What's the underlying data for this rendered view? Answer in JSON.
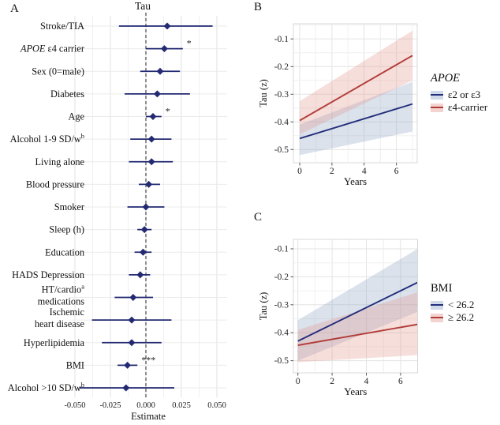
{
  "figure": {
    "outcome": "Tau",
    "background": "#ffffff",
    "navy": "#232e7c",
    "red": "#b23c38"
  },
  "chart_data": [
    {
      "panel_label": "A",
      "type": "scatter",
      "subtype": "forest_plot",
      "title": "Tau",
      "xlabel": "Estimate",
      "point_color": "#232a72",
      "reference_line": 0,
      "xlim": [
        -0.054,
        0.057
      ],
      "xticks": [
        -0.05,
        -0.025,
        0,
        0.025,
        0.05
      ],
      "xtick_labels": [
        "-0.050",
        "-0.025",
        "0.000",
        "0.025",
        "0.050"
      ],
      "rows": [
        {
          "name": "Stroke/TIA",
          "estimate": 0.015,
          "ci": [
            -0.019,
            0.047
          ],
          "sig": ""
        },
        {
          "name": "APOE ε4 carrier",
          "label": [
            [
              "APOE",
              "i"
            ],
            [
              " ε4 carrier",
              "n"
            ]
          ],
          "estimate": 0.013,
          "ci": [
            0.0,
            0.026
          ],
          "sig": "*"
        },
        {
          "name": "Sex (0=male)",
          "estimate": 0.01,
          "ci": [
            -0.004,
            0.024
          ],
          "sig": ""
        },
        {
          "name": "Diabetes",
          "estimate": 0.008,
          "ci": [
            -0.015,
            0.031
          ],
          "sig": ""
        },
        {
          "name": "Age",
          "estimate": 0.005,
          "ci": [
            0.0,
            0.011
          ],
          "sig": "*"
        },
        {
          "name": "Alcohol 1-9 SD/w",
          "label": [
            [
              "Alcohol 1-9 SD/w",
              "n"
            ],
            [
              "b",
              "s"
            ]
          ],
          "estimate": 0.004,
          "ci": [
            -0.011,
            0.018
          ],
          "sig": ""
        },
        {
          "name": "Living alone",
          "estimate": 0.004,
          "ci": [
            -0.012,
            0.019
          ],
          "sig": ""
        },
        {
          "name": "Blood pressure",
          "estimate": 0.002,
          "ci": [
            -0.005,
            0.01
          ],
          "sig": ""
        },
        {
          "name": "Smoker",
          "estimate": 0.0,
          "ci": [
            -0.013,
            0.013
          ],
          "sig": ""
        },
        {
          "name": "Sleep (h)",
          "estimate": -0.001,
          "ci": [
            -0.006,
            0.004
          ],
          "sig": ""
        },
        {
          "name": "Education",
          "estimate": -0.002,
          "ci": [
            -0.008,
            0.004
          ],
          "sig": ""
        },
        {
          "name": "HADS Depression",
          "estimate": -0.004,
          "ci": [
            -0.012,
            0.003
          ],
          "sig": ""
        },
        {
          "name": "HT/cardio medications",
          "label": [
            [
              "HT/cardio",
              "n"
            ],
            [
              "a",
              "s"
            ]
          ],
          "label2": [
            [
              "medications",
              "n"
            ]
          ],
          "estimate": -0.009,
          "ci": [
            -0.022,
            0.005
          ],
          "sig": ""
        },
        {
          "name": "Ischemic heart disease",
          "label": [
            [
              "Ischemic",
              "n"
            ]
          ],
          "label2": [
            [
              "heart disease",
              "n"
            ]
          ],
          "estimate": -0.01,
          "ci": [
            -0.038,
            0.018
          ],
          "sig": ""
        },
        {
          "name": "Hyperlipidemia",
          "estimate": -0.01,
          "ci": [
            -0.031,
            0.011
          ],
          "sig": ""
        },
        {
          "name": "BMI",
          "estimate": -0.013,
          "ci": [
            -0.02,
            -0.006
          ],
          "sig": "***"
        },
        {
          "name": "Alcohol >10 SD/w",
          "label": [
            [
              "Alcohol >10 SD/w",
              "n"
            ],
            [
              "b",
              "s"
            ]
          ],
          "estimate": -0.014,
          "ci": [
            -0.047,
            0.02
          ],
          "sig": ""
        }
      ]
    },
    {
      "panel_label": "B",
      "type": "line",
      "xlabel": "Years",
      "ylabel": "Tau (z)",
      "xlim": [
        -0.4,
        7.3
      ],
      "ylim": [
        -0.55,
        -0.045
      ],
      "xticks": [
        0,
        2,
        4,
        6
      ],
      "xtick_labels": [
        "0",
        "2",
        "4",
        "6"
      ],
      "yticks": [
        -0.1,
        -0.2,
        -0.3,
        -0.4,
        -0.5
      ],
      "ytick_labels": [
        "-0.1",
        "-0.2",
        "-0.3",
        "-0.4",
        "-0.5"
      ],
      "legend": {
        "title": "APOE",
        "italic_title": true,
        "position": "right"
      },
      "x": [
        0,
        7
      ],
      "series": [
        {
          "name": "ε2 or ε3",
          "line_color": "#232e7c",
          "band_color": "#8fa5c5",
          "y": [
            -0.46,
            -0.335
          ],
          "ci_upper": [
            -0.41,
            -0.255
          ],
          "ci_lower": [
            -0.52,
            -0.435
          ]
        },
        {
          "name": "ε4-carrier",
          "line_color": "#b23c38",
          "band_color": "#e4988f",
          "y": [
            -0.395,
            -0.16
          ],
          "ci_upper": [
            -0.325,
            -0.07
          ],
          "ci_lower": [
            -0.445,
            -0.25
          ]
        }
      ]
    },
    {
      "panel_label": "C",
      "type": "line",
      "xlabel": "Years",
      "ylabel": "Tau (z)",
      "xlim": [
        -0.4,
        7.3
      ],
      "ylim": [
        -0.55,
        -0.045
      ],
      "xticks": [
        0,
        2,
        4,
        6
      ],
      "xtick_labels": [
        "0",
        "2",
        "4",
        "6"
      ],
      "yticks": [
        -0.1,
        -0.2,
        -0.3,
        -0.4,
        -0.5
      ],
      "ytick_labels": [
        "-0.1",
        "-0.2",
        "-0.3",
        "-0.4",
        "-0.5"
      ],
      "legend": {
        "title": "BMI",
        "italic_title": false,
        "position": "right"
      },
      "x": [
        0,
        7
      ],
      "series": [
        {
          "name": "< 26.2",
          "line_color": "#232e7c",
          "band_color": "#8fa5c5",
          "y": [
            -0.43,
            -0.22
          ],
          "ci_upper": [
            -0.355,
            -0.1
          ],
          "ci_lower": [
            -0.5,
            -0.325
          ]
        },
        {
          "name": "≥ 26.2",
          "line_color": "#b23c38",
          "band_color": "#e4988f",
          "y": [
            -0.445,
            -0.37
          ],
          "ci_upper": [
            -0.39,
            -0.255
          ],
          "ci_lower": [
            -0.505,
            -0.48
          ]
        }
      ]
    }
  ]
}
